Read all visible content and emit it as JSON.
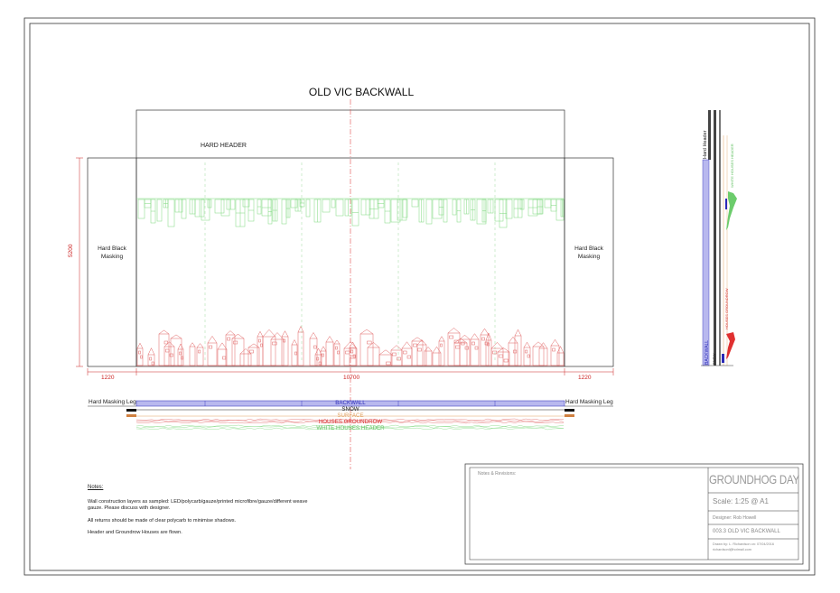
{
  "drawing": {
    "title": "OLD VIC BACKWALL",
    "hard_header_label": "HARD HEADER",
    "left_masking_label": "Hard Black Masking",
    "right_masking_label": "Hard Black Masking",
    "dimensions": {
      "height": "5200",
      "left_width": "1220",
      "center_width": "10700",
      "right_width": "1220"
    }
  },
  "plan": {
    "left_leg_label": "Hard Masking Leg",
    "right_leg_label": "Hard Masking Leg",
    "layers": [
      {
        "label": "BACKWALL",
        "color": "#2a2ab8"
      },
      {
        "label": "SNOW",
        "color": "#222222"
      },
      {
        "label": "SURFACE",
        "color": "#e0a060"
      },
      {
        "label": "HOUSES GROUNDROW",
        "color": "#d83030"
      },
      {
        "label": "WHITE HOUSES HEADER",
        "color": "#60c060"
      }
    ]
  },
  "section": {
    "header_label": "Hard Header",
    "backwall_label": "BACKWALL",
    "snow_label": "SNOW",
    "houses_header_label": "WHITE HOUSES HEADER",
    "groundrow_label": "HOUSES GROUNDROW"
  },
  "notes": {
    "heading": "Notes:",
    "lines": [
      "Wall construction layers as sampled: LED/polycarb/gauze/printed microfibre/gauze/different weave gauze. Please discuss with designer.",
      "All returns should be made of clear polycarb to minimise shadows.",
      "Header  and Groundrow Houses are flown."
    ]
  },
  "title_block": {
    "notes_label": "Notes & Revisions:",
    "show": "GROUNDHOG DAY",
    "scale": "Scale: 1:25 @ A1",
    "designer": "Designer: Rob Howell",
    "drawing_no": "003.3 OLD VIC BACKWALL",
    "drawn_by": "Drawn by: L. Richardson on: 07/04/2016",
    "email": "richardsonl@hotmail.com"
  },
  "colors": {
    "green": "#7fd87f",
    "red": "#e06060",
    "blue_fill": "#b8b8ee",
    "dim_red": "#cc2222"
  }
}
